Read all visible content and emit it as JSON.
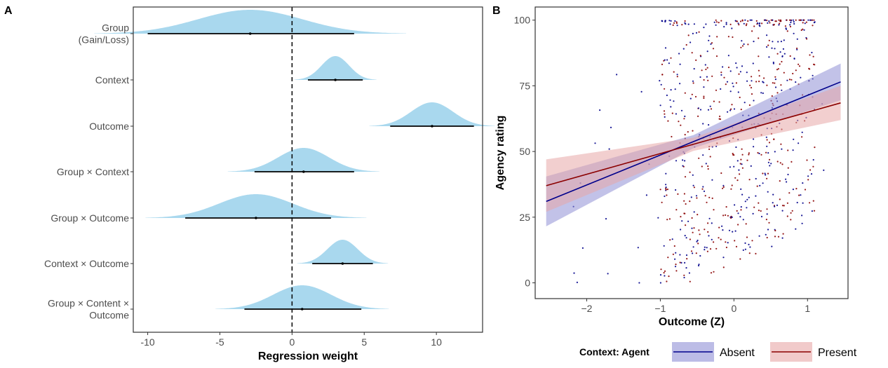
{
  "panel_a": {
    "label": "A"
  },
  "panel_b": {
    "label": "B"
  },
  "chart_data": [
    {
      "type": "ridgeline",
      "xlabel": "Regression weight",
      "xlim": [
        -11,
        13.2
      ],
      "xticks": [
        -10,
        -5,
        0,
        5,
        10
      ],
      "ref_line": 0,
      "density_color": "#a9d8ee",
      "rows": [
        {
          "label": "Group\n(Gain/Loss)",
          "mean": -2.9,
          "lo": -10.0,
          "hi": 4.3,
          "sd": 3.6
        },
        {
          "label": "Context",
          "mean": 3.0,
          "lo": 1.1,
          "hi": 4.9,
          "sd": 0.95
        },
        {
          "label": "Outcome",
          "mean": 9.7,
          "lo": 6.8,
          "hi": 12.6,
          "sd": 1.45
        },
        {
          "label": "Group × Context",
          "mean": 0.8,
          "lo": -2.6,
          "hi": 4.3,
          "sd": 1.75
        },
        {
          "label": "Group × Outcome",
          "mean": -2.5,
          "lo": -7.4,
          "hi": 2.7,
          "sd": 2.55
        },
        {
          "label": "Context × Outcome",
          "mean": 3.5,
          "lo": 1.4,
          "hi": 5.6,
          "sd": 1.05
        },
        {
          "label": "Group × Content ×\nOutcome",
          "mean": 0.7,
          "lo": -3.3,
          "hi": 4.8,
          "sd": 2.0
        }
      ]
    },
    {
      "type": "scatter",
      "xlabel": "Outcome (Z)",
      "ylabel": "Agency rating",
      "xlim": [
        -2.7,
        1.55
      ],
      "ylim": [
        -6,
        105
      ],
      "xticks": [
        -2,
        -1,
        0,
        1
      ],
      "yticks": [
        0,
        25,
        50,
        75,
        100
      ],
      "legend": {
        "title": "Context: Agent",
        "position": "bottom"
      },
      "series": [
        {
          "name": "Absent",
          "color": "#00008b",
          "ribbon": "#8f8fd6",
          "line": [
            [
              -2.55,
              31
            ],
            [
              1.45,
              76.5
            ]
          ],
          "band_halfwidth": [
            9.5,
            7.0
          ]
        },
        {
          "name": "Present",
          "color": "#8b0000",
          "ribbon": "#e8a7a7",
          "line": [
            [
              -2.55,
              37
            ],
            [
              1.45,
              68.5
            ]
          ],
          "band_halfwidth": [
            10.0,
            6.5
          ]
        }
      ]
    }
  ]
}
